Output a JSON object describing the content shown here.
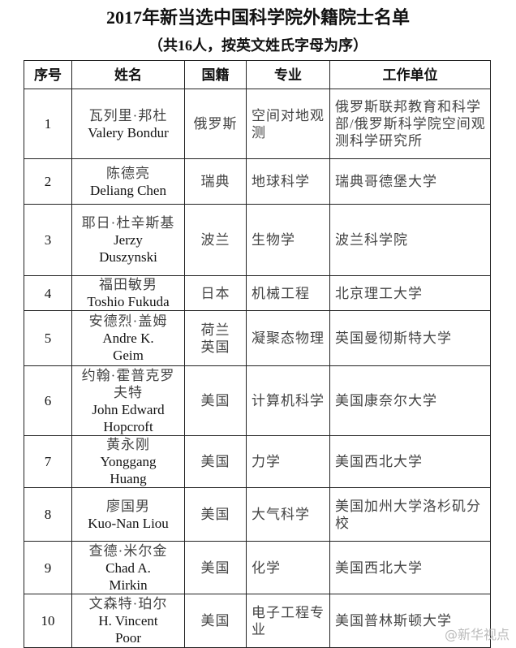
{
  "title": "2017年新当选中国科学院外籍院士名单",
  "subtitle": "（共16人，按英文姓氏字母为序）",
  "headers": [
    "序号",
    "姓名",
    "国籍",
    "专业",
    "工作单位"
  ],
  "rows": [
    {
      "no": "1",
      "name_cn": "瓦列里·邦杜",
      "name_en": "Valery Bondur",
      "nationality": "俄罗斯",
      "field": "空间对地观测",
      "unit": "俄罗斯联邦教育和科学部/俄罗斯科学院空间观测科学研究所"
    },
    {
      "no": "2",
      "name_cn": "陈德亮",
      "name_en": "Deliang Chen",
      "nationality": "瑞典",
      "field": "地球科学",
      "unit": "瑞典哥德堡大学"
    },
    {
      "no": "3",
      "name_cn": "耶日·杜辛斯基",
      "name_en": "Jerzy Duszynski",
      "nationality": "波兰",
      "field": "生物学",
      "unit": "波兰科学院"
    },
    {
      "no": "4",
      "name_cn": "福田敏男",
      "name_en": "Toshio Fukuda",
      "nationality": "日本",
      "field": "机械工程",
      "unit": "北京理工大学"
    },
    {
      "no": "5",
      "name_cn": "安德烈·盖姆",
      "name_en": "Andre K. Geim",
      "nationality": "荷兰 英国",
      "field": "凝聚态物理",
      "unit": "英国曼彻斯特大学"
    },
    {
      "no": "6",
      "name_cn": "约翰·霍普克罗夫特",
      "name_en": "John Edward Hopcroft",
      "nationality": "美国",
      "field": "计算机科学",
      "unit": "美国康奈尔大学"
    },
    {
      "no": "7",
      "name_cn": "黄永刚",
      "name_en": "Yonggang Huang",
      "nationality": "美国",
      "field": "力学",
      "unit": "美国西北大学"
    },
    {
      "no": "8",
      "name_cn": "廖国男",
      "name_en": "Kuo-Nan Liou",
      "nationality": "美国",
      "field": "大气科学",
      "unit": "美国加州大学洛杉矶分校"
    },
    {
      "no": "9",
      "name_cn": "查德·米尔金",
      "name_en": "Chad A. Mirkin",
      "nationality": "美国",
      "field": "化学",
      "unit": "美国西北大学"
    },
    {
      "no": "10",
      "name_cn": "文森特·珀尔",
      "name_en": "H. Vincent Poor",
      "nationality": "美国",
      "field": "电子工程专业",
      "unit": "美国普林斯顿大学"
    }
  ],
  "watermark": "@新华视点"
}
